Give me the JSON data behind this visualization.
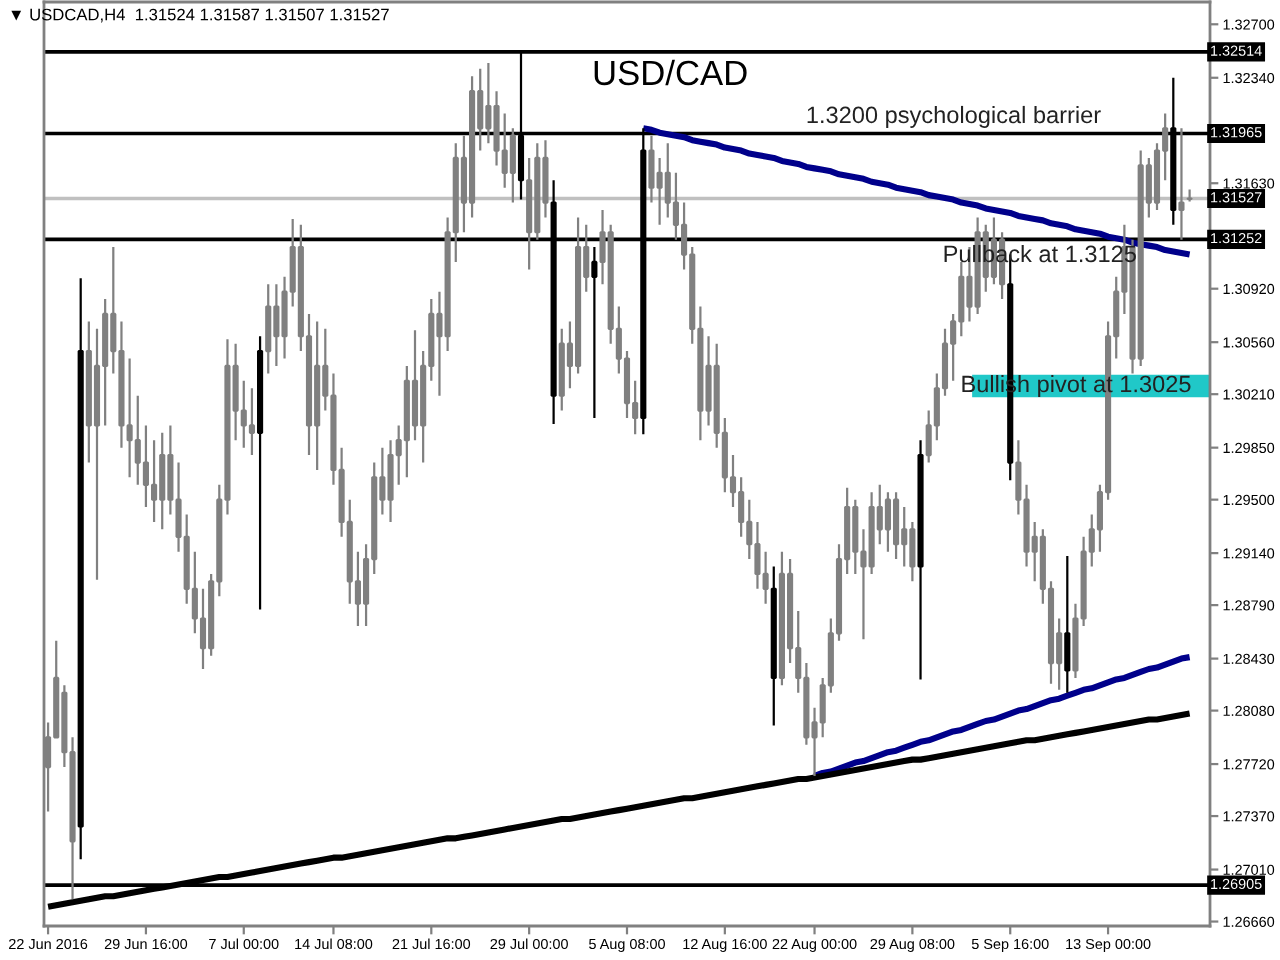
{
  "chart_data": {
    "type": "candlestick",
    "title": "USD/CAD",
    "subtitle": "▼ USDCAD,H4  1.31524 1.31587 1.31507 1.31527",
    "categories": [
      "22 Jun 2016",
      null,
      null,
      null,
      null,
      null,
      null,
      null,
      null,
      null,
      null,
      null,
      "29 Jun 16:00",
      null,
      null,
      null,
      null,
      null,
      null,
      null,
      null,
      null,
      null,
      null,
      "7 Jul 00:00",
      null,
      null,
      null,
      null,
      null,
      null,
      null,
      null,
      null,
      null,
      "14 Jul 08:00",
      null,
      null,
      null,
      null,
      null,
      null,
      null,
      null,
      null,
      null,
      null,
      "21 Jul 16:00",
      null,
      null,
      null,
      null,
      null,
      null,
      null,
      null,
      null,
      null,
      null,
      "29 Jul 00:00",
      null,
      null,
      null,
      null,
      null,
      null,
      null,
      null,
      null,
      null,
      null,
      "5 Aug 08:00",
      null,
      null,
      null,
      null,
      null,
      null,
      null,
      null,
      null,
      null,
      null,
      "12 Aug 16:00",
      null,
      null,
      null,
      null,
      null,
      null,
      null,
      null,
      null,
      null,
      "22 Aug 00:00",
      null,
      null,
      null,
      null,
      null,
      null,
      null,
      null,
      null,
      null,
      null,
      "29 Aug 08:00",
      null,
      null,
      null,
      null,
      null,
      null,
      null,
      null,
      null,
      null,
      null,
      "5 Sep 16:00",
      null,
      null,
      null,
      null,
      null,
      null,
      null,
      null,
      null,
      null,
      null,
      "13 Sep 00:00",
      null,
      null,
      null,
      null,
      null,
      null,
      null,
      null,
      null,
      null
    ],
    "ohlc": [
      [
        1.277,
        1.28,
        1.274,
        1.279
      ],
      [
        1.279,
        1.2855,
        1.279,
        1.283
      ],
      [
        1.282,
        1.2825,
        1.277,
        1.278
      ],
      [
        1.278,
        1.279,
        1.2681,
        1.272
      ],
      [
        1.273,
        1.3099,
        1.2708,
        1.305
      ],
      [
        1.305,
        1.307,
        1.2975,
        1.3
      ],
      [
        1.3,
        1.3065,
        1.2896,
        1.304
      ],
      [
        1.304,
        1.3085,
        1.3,
        1.3075
      ],
      [
        1.3075,
        1.312,
        1.3035,
        1.305
      ],
      [
        1.305,
        1.307,
        1.2985,
        1.3
      ],
      [
        1.3,
        1.3045,
        1.2965,
        1.299
      ],
      [
        1.299,
        1.302,
        1.296,
        1.2975
      ],
      [
        1.2975,
        1.3,
        1.2945,
        1.296
      ],
      [
        1.296,
        1.299,
        1.2935,
        1.295
      ],
      [
        1.295,
        1.2995,
        1.293,
        1.298
      ],
      [
        1.298,
        1.3,
        1.294,
        1.295
      ],
      [
        1.295,
        1.2975,
        1.2915,
        1.2925
      ],
      [
        1.2925,
        1.294,
        1.288,
        1.289
      ],
      [
        1.289,
        1.2915,
        1.286,
        1.287
      ],
      [
        1.287,
        1.289,
        1.2836,
        1.285
      ],
      [
        1.285,
        1.29,
        1.2845,
        1.2895
      ],
      [
        1.2895,
        1.296,
        1.2885,
        1.295
      ],
      [
        1.295,
        1.3058,
        1.294,
        1.304
      ],
      [
        1.304,
        1.3055,
        1.299,
        1.301
      ],
      [
        1.301,
        1.303,
        1.2985,
        1.3
      ],
      [
        1.3,
        1.3025,
        1.298,
        1.2995
      ],
      [
        1.2995,
        1.306,
        1.2876,
        1.305
      ],
      [
        1.305,
        1.3095,
        1.3035,
        1.308
      ],
      [
        1.308,
        1.3095,
        1.304,
        1.306
      ],
      [
        1.306,
        1.31,
        1.3045,
        1.309
      ],
      [
        1.309,
        1.3139,
        1.308,
        1.312
      ],
      [
        1.312,
        1.3135,
        1.305,
        1.306
      ],
      [
        1.306,
        1.3075,
        1.298,
        1.3
      ],
      [
        1.3,
        1.307,
        1.297,
        1.304
      ],
      [
        1.304,
        1.3065,
        1.301,
        1.302
      ],
      [
        1.302,
        1.3035,
        1.296,
        1.297
      ],
      [
        1.297,
        1.2985,
        1.2925,
        1.2935
      ],
      [
        1.2935,
        1.295,
        1.288,
        1.2895
      ],
      [
        1.2895,
        1.2915,
        1.2865,
        1.288
      ],
      [
        1.288,
        1.292,
        1.2865,
        1.291
      ],
      [
        1.291,
        1.2975,
        1.29,
        1.2965
      ],
      [
        1.2965,
        1.2985,
        1.294,
        1.295
      ],
      [
        1.295,
        1.299,
        1.2935,
        1.298
      ],
      [
        1.298,
        1.3,
        1.296,
        1.299
      ],
      [
        1.299,
        1.304,
        1.2965,
        1.303
      ],
      [
        1.303,
        1.3064,
        1.299,
        1.3
      ],
      [
        1.3,
        1.305,
        1.2975,
        1.304
      ],
      [
        1.304,
        1.3085,
        1.303,
        1.3075
      ],
      [
        1.3075,
        1.309,
        1.302,
        1.306
      ],
      [
        1.306,
        1.314,
        1.305,
        1.313
      ],
      [
        1.313,
        1.319,
        1.311,
        1.318
      ],
      [
        1.318,
        1.3195,
        1.313,
        1.315
      ],
      [
        1.315,
        1.3235,
        1.314,
        1.3225
      ],
      [
        1.3225,
        1.324,
        1.3185,
        1.32
      ],
      [
        1.32,
        1.3244,
        1.319,
        1.3215
      ],
      [
        1.3215,
        1.3225,
        1.3175,
        1.3185
      ],
      [
        1.3185,
        1.321,
        1.316,
        1.317
      ],
      [
        1.317,
        1.32,
        1.315,
        1.3195
      ],
      [
        1.3195,
        1.3251,
        1.3152,
        1.3165
      ],
      [
        1.3165,
        1.318,
        1.3105,
        1.313
      ],
      [
        1.313,
        1.319,
        1.3125,
        1.318
      ],
      [
        1.318,
        1.3192,
        1.314,
        1.315
      ],
      [
        1.315,
        1.3165,
        1.3001,
        1.302
      ],
      [
        1.302,
        1.3065,
        1.301,
        1.3055
      ],
      [
        1.3055,
        1.307,
        1.3025,
        1.304
      ],
      [
        1.304,
        1.314,
        1.3035,
        1.312
      ],
      [
        1.312,
        1.3135,
        1.309,
        1.31
      ],
      [
        1.31,
        1.312,
        1.3005,
        1.311
      ],
      [
        1.311,
        1.3145,
        1.3095,
        1.313
      ],
      [
        1.313,
        1.3135,
        1.3055,
        1.3065
      ],
      [
        1.3065,
        1.308,
        1.3035,
        1.3045
      ],
      [
        1.3045,
        1.305,
        1.3005,
        1.3015
      ],
      [
        1.3015,
        1.303,
        1.2994,
        1.3005
      ],
      [
        1.3005,
        1.32,
        1.2994,
        1.3185
      ],
      [
        1.3185,
        1.3195,
        1.315,
        1.316
      ],
      [
        1.316,
        1.318,
        1.3135,
        1.317
      ],
      [
        1.317,
        1.319,
        1.314,
        1.315
      ],
      [
        1.315,
        1.317,
        1.3125,
        1.3135
      ],
      [
        1.3135,
        1.315,
        1.3105,
        1.3115
      ],
      [
        1.3115,
        1.312,
        1.3055,
        1.3065
      ],
      [
        1.3065,
        1.308,
        1.299,
        1.301
      ],
      [
        1.301,
        1.306,
        1.3,
        1.304
      ],
      [
        1.304,
        1.3055,
        1.2985,
        1.2995
      ],
      [
        1.2995,
        1.3005,
        1.2955,
        1.2965
      ],
      [
        1.2965,
        1.298,
        1.2945,
        1.2955
      ],
      [
        1.2955,
        1.2965,
        1.2925,
        1.2935
      ],
      [
        1.2935,
        1.295,
        1.291,
        1.292
      ],
      [
        1.292,
        1.2935,
        1.289,
        1.29
      ],
      [
        1.29,
        1.2915,
        1.288,
        1.289
      ],
      [
        1.289,
        1.2905,
        1.2798,
        1.283
      ],
      [
        1.283,
        1.2915,
        1.2825,
        1.29
      ],
      [
        1.29,
        1.291,
        1.284,
        1.285
      ],
      [
        1.285,
        1.2875,
        1.282,
        1.283
      ],
      [
        1.283,
        1.284,
        1.2785,
        1.279
      ],
      [
        1.279,
        1.281,
        1.2764,
        1.28
      ],
      [
        1.28,
        1.283,
        1.279,
        1.2825
      ],
      [
        1.2825,
        1.287,
        1.282,
        1.286
      ],
      [
        1.286,
        1.292,
        1.2855,
        1.291
      ],
      [
        1.291,
        1.2958,
        1.29,
        1.2945
      ],
      [
        1.2945,
        1.295,
        1.29,
        1.2915
      ],
      [
        1.2915,
        1.293,
        1.2856,
        1.2905
      ],
      [
        1.2905,
        1.2955,
        1.29,
        1.2945
      ],
      [
        1.2945,
        1.296,
        1.292,
        1.293
      ],
      [
        1.293,
        1.2955,
        1.2915,
        1.295
      ],
      [
        1.295,
        1.2955,
        1.291,
        1.292
      ],
      [
        1.292,
        1.2945,
        1.2905,
        1.293
      ],
      [
        1.293,
        1.2935,
        1.2895,
        1.2905
      ],
      [
        1.2905,
        1.299,
        1.2829,
        1.298
      ],
      [
        1.298,
        1.301,
        1.2975,
        1.3
      ],
      [
        1.3,
        1.3035,
        1.299,
        1.3025
      ],
      [
        1.3025,
        1.3065,
        1.302,
        1.3055
      ],
      [
        1.3055,
        1.3075,
        1.303,
        1.307
      ],
      [
        1.307,
        1.311,
        1.306,
        1.31
      ],
      [
        1.31,
        1.312,
        1.307,
        1.308
      ],
      [
        1.308,
        1.314,
        1.3075,
        1.313
      ],
      [
        1.313,
        1.3135,
        1.309,
        1.31
      ],
      [
        1.31,
        1.314,
        1.3095,
        1.3125
      ],
      [
        1.3125,
        1.313,
        1.3085,
        1.3095
      ],
      [
        1.3095,
        1.3115,
        1.2963,
        1.2975
      ],
      [
        1.2975,
        1.299,
        1.294,
        1.295
      ],
      [
        1.295,
        1.296,
        1.2905,
        1.2915
      ],
      [
        1.2915,
        1.2935,
        1.2895,
        1.2925
      ],
      [
        1.2925,
        1.293,
        1.288,
        1.289
      ],
      [
        1.289,
        1.2895,
        1.2826,
        1.284
      ],
      [
        1.284,
        1.287,
        1.2822,
        1.286
      ],
      [
        1.286,
        1.2912,
        1.282,
        1.2835
      ],
      [
        1.2835,
        1.288,
        1.283,
        1.287
      ],
      [
        1.287,
        1.2925,
        1.2865,
        1.2915
      ],
      [
        1.2915,
        1.294,
        1.2905,
        1.293
      ],
      [
        1.293,
        1.296,
        1.2915,
        1.2955
      ],
      [
        1.2955,
        1.307,
        1.295,
        1.306
      ],
      [
        1.306,
        1.31,
        1.3045,
        1.309
      ],
      [
        1.309,
        1.3135,
        1.3075,
        1.312
      ],
      [
        1.312,
        1.3125,
        1.3035,
        1.3045
      ],
      [
        1.3045,
        1.3185,
        1.304,
        1.3175
      ],
      [
        1.3175,
        1.318,
        1.314,
        1.315
      ],
      [
        1.315,
        1.319,
        1.3145,
        1.3185
      ],
      [
        1.3185,
        1.321,
        1.3165,
        1.32
      ],
      [
        1.32,
        1.3234,
        1.3135,
        1.3145
      ],
      [
        1.3145,
        1.32,
        1.3125,
        1.315
      ],
      [
        1.31524,
        1.31587,
        1.31507,
        1.31527
      ]
    ],
    "colors": [
      "#808080",
      "#808080",
      "#808080",
      "#808080",
      "#000000",
      "#808080",
      "#808080",
      "#808080",
      "#808080",
      "#808080",
      "#808080",
      "#808080",
      "#808080",
      "#808080",
      "#808080",
      "#808080",
      "#808080",
      "#808080",
      "#808080",
      "#808080",
      "#808080",
      "#808080",
      "#808080",
      "#808080",
      "#808080",
      "#808080",
      "#000000",
      "#808080",
      "#808080",
      "#808080",
      "#808080",
      "#808080",
      "#808080",
      "#808080",
      "#808080",
      "#808080",
      "#808080",
      "#808080",
      "#808080",
      "#808080",
      "#808080",
      "#808080",
      "#808080",
      "#808080",
      "#808080",
      "#808080",
      "#808080",
      "#808080",
      "#808080",
      "#808080",
      "#808080",
      "#808080",
      "#808080",
      "#808080",
      "#808080",
      "#808080",
      "#808080",
      "#808080",
      "#000000",
      "#808080",
      "#808080",
      "#808080",
      "#000000",
      "#808080",
      "#808080",
      "#808080",
      "#808080",
      "#000000",
      "#808080",
      "#808080",
      "#808080",
      "#808080",
      "#808080",
      "#000000",
      "#808080",
      "#808080",
      "#808080",
      "#808080",
      "#808080",
      "#808080",
      "#808080",
      "#808080",
      "#808080",
      "#808080",
      "#808080",
      "#808080",
      "#808080",
      "#808080",
      "#808080",
      "#000000",
      "#808080",
      "#808080",
      "#808080",
      "#808080",
      "#808080",
      "#808080",
      "#808080",
      "#808080",
      "#808080",
      "#808080",
      "#808080",
      "#808080",
      "#808080",
      "#808080",
      "#808080",
      "#808080",
      "#808080",
      "#000000",
      "#808080",
      "#808080",
      "#808080",
      "#808080",
      "#808080",
      "#808080",
      "#808080",
      "#808080",
      "#808080",
      "#808080",
      "#000000",
      "#808080",
      "#808080",
      "#808080",
      "#808080",
      "#808080",
      "#808080",
      "#000000",
      "#808080",
      "#808080",
      "#808080",
      "#808080",
      "#808080",
      "#808080",
      "#808080",
      "#808080",
      "#808080",
      "#808080",
      "#808080",
      "#808080",
      "#000000",
      "#808080",
      "#808080"
    ],
    "series": [
      {
        "type": "line",
        "color": "#00008b",
        "values": [
          null,
          null,
          null,
          null,
          null,
          null,
          null,
          null,
          null,
          null,
          null,
          null,
          null,
          null,
          null,
          null,
          null,
          null,
          null,
          null,
          null,
          null,
          null,
          null,
          null,
          null,
          null,
          null,
          null,
          null,
          null,
          null,
          null,
          null,
          null,
          null,
          null,
          null,
          null,
          null,
          null,
          null,
          null,
          null,
          null,
          null,
          null,
          null,
          null,
          null,
          null,
          null,
          null,
          null,
          null,
          null,
          null,
          null,
          null,
          null,
          null,
          null,
          null,
          null,
          null,
          null,
          null,
          null,
          null,
          null,
          null,
          null,
          null,
          1.32,
          1.3199,
          1.3197,
          1.3196,
          1.3195,
          1.3194,
          1.3192,
          1.3191,
          1.319,
          1.3189,
          1.3187,
          1.3186,
          1.3185,
          1.3183,
          1.3182,
          1.3181,
          1.318,
          1.3178,
          1.3177,
          1.3176,
          1.3174,
          1.3173,
          1.3172,
          1.3171,
          1.3169,
          1.3168,
          1.3167,
          1.3166,
          1.3164,
          1.3163,
          1.3162,
          1.316,
          1.3159,
          1.3158,
          1.3157,
          1.3155,
          1.3154,
          1.3153,
          1.3152,
          1.315,
          1.3149,
          1.3148,
          1.3146,
          1.3145,
          1.3144,
          1.3143,
          1.3141,
          1.314,
          1.3139,
          1.3138,
          1.3136,
          1.3135,
          1.3134,
          1.3132,
          1.3131,
          1.313,
          1.3129,
          1.3127,
          1.3126,
          1.3125,
          1.3123,
          1.3122,
          1.3121,
          1.312,
          1.3118,
          1.3117,
          1.3116,
          1.3115
        ]
      },
      {
        "type": "line",
        "color": "#00008b",
        "values": [
          null,
          null,
          null,
          null,
          null,
          null,
          null,
          null,
          null,
          null,
          null,
          null,
          null,
          null,
          null,
          null,
          null,
          null,
          null,
          null,
          null,
          null,
          null,
          null,
          null,
          null,
          null,
          null,
          null,
          null,
          null,
          null,
          null,
          null,
          null,
          null,
          null,
          null,
          null,
          null,
          null,
          null,
          null,
          null,
          null,
          null,
          null,
          null,
          null,
          null,
          null,
          null,
          null,
          null,
          null,
          null,
          null,
          null,
          null,
          null,
          null,
          null,
          null,
          null,
          null,
          null,
          null,
          null,
          null,
          null,
          null,
          null,
          null,
          null,
          null,
          null,
          null,
          null,
          null,
          null,
          null,
          null,
          null,
          null,
          null,
          null,
          null,
          null,
          null,
          null,
          null,
          null,
          null,
          null,
          1.2764,
          1.2766,
          1.2767,
          1.2769,
          1.2771,
          1.2773,
          1.2774,
          1.2776,
          1.2778,
          1.278,
          1.2781,
          1.2783,
          1.2785,
          1.2787,
          1.2788,
          1.279,
          1.2792,
          1.2794,
          1.2795,
          1.2797,
          1.2799,
          1.2801,
          1.2802,
          1.2804,
          1.2806,
          1.2808,
          1.2809,
          1.2811,
          1.2813,
          1.2815,
          1.2816,
          1.2818,
          1.282,
          1.2822,
          1.2823,
          1.2825,
          1.2827,
          1.2829,
          1.283,
          1.2832,
          1.2834,
          1.2836,
          1.2837,
          1.2839,
          1.2841,
          1.2843,
          1.2844
        ]
      },
      {
        "type": "line",
        "color": "#000000",
        "values": [
          1.2676,
          1.2677,
          1.2678,
          1.2679,
          1.268,
          1.2681,
          1.2682,
          1.2683,
          1.2683,
          1.2684,
          1.2685,
          1.2686,
          1.2687,
          1.2688,
          1.2689,
          1.269,
          1.2691,
          1.2692,
          1.2693,
          1.2694,
          1.2695,
          1.2696,
          1.2696,
          1.2697,
          1.2698,
          1.2699,
          1.27,
          1.2701,
          1.2702,
          1.2703,
          1.2704,
          1.2705,
          1.2706,
          1.2707,
          1.2708,
          1.2709,
          1.2709,
          1.271,
          1.2711,
          1.2712,
          1.2713,
          1.2714,
          1.2715,
          1.2716,
          1.2717,
          1.2718,
          1.2719,
          1.272,
          1.2721,
          1.2722,
          1.2722,
          1.2723,
          1.2724,
          1.2725,
          1.2726,
          1.2727,
          1.2728,
          1.2729,
          1.273,
          1.2731,
          1.2732,
          1.2733,
          1.2734,
          1.2735,
          1.2735,
          1.2736,
          1.2737,
          1.2738,
          1.2739,
          1.274,
          1.2741,
          1.2742,
          1.2743,
          1.2744,
          1.2745,
          1.2746,
          1.2747,
          1.2748,
          1.2749,
          1.2749,
          1.275,
          1.2751,
          1.2752,
          1.2753,
          1.2754,
          1.2755,
          1.2756,
          1.2757,
          1.2758,
          1.2759,
          1.276,
          1.2761,
          1.2762,
          1.2762,
          1.2763,
          1.2764,
          1.2765,
          1.2766,
          1.2767,
          1.2768,
          1.2769,
          1.277,
          1.2771,
          1.2772,
          1.2773,
          1.2774,
          1.2775,
          1.2775,
          1.2776,
          1.2777,
          1.2778,
          1.2779,
          1.278,
          1.2781,
          1.2782,
          1.2783,
          1.2784,
          1.2785,
          1.2786,
          1.2787,
          1.2788,
          1.2788,
          1.2789,
          1.279,
          1.2791,
          1.2792,
          1.2793,
          1.2794,
          1.2795,
          1.2796,
          1.2797,
          1.2798,
          1.2799,
          1.28,
          1.2801,
          1.2802,
          1.2802,
          1.2803,
          1.2804,
          1.2805,
          1.2806
        ]
      }
    ],
    "ref_lines": [
      {
        "axis": "y",
        "value": 1.32514,
        "label": "1.32514",
        "color": "#000000"
      },
      {
        "axis": "y",
        "value": 1.31965,
        "label": "1.31965",
        "color": "#000000"
      },
      {
        "axis": "y",
        "value": 1.31527,
        "label": "1.31527",
        "color": "#c0c0c0"
      },
      {
        "axis": "y",
        "value": 1.31252,
        "label": "1.31252",
        "color": "#000000"
      },
      {
        "axis": "y",
        "value": 1.26905,
        "label": "1.26905",
        "color": "#000000"
      }
    ],
    "bands": [
      {
        "axis": "y",
        "from": 1.3019,
        "to": 1.3034,
        "label": "Bullish pivot at 1.3025",
        "color": "#20c8c8"
      }
    ],
    "annotations": [
      {
        "text": "1.3200 psychological barrier",
        "y": 1.31965
      },
      {
        "text": "Pullback at 1.3125",
        "y": 1.31252
      }
    ],
    "ylim": [
      1.2663,
      1.3285
    ],
    "yticks": [
      {
        "value": 1.327,
        "label": "1.32700"
      },
      {
        "value": 1.3234,
        "label": "1.32340"
      },
      {
        "value": 1.3163,
        "label": "1.31630"
      },
      {
        "value": 1.3092,
        "label": "1.30920"
      },
      {
        "value": 1.3056,
        "label": "1.30560"
      },
      {
        "value": 1.3021,
        "label": "1.30210"
      },
      {
        "value": 1.2985,
        "label": "1.29850"
      },
      {
        "value": 1.295,
        "label": "1.29500"
      },
      {
        "value": 1.2914,
        "label": "1.29140"
      },
      {
        "value": 1.2879,
        "label": "1.28790"
      },
      {
        "value": 1.2843,
        "label": "1.28430"
      },
      {
        "value": 1.2808,
        "label": "1.28080"
      },
      {
        "value": 1.2772,
        "label": "1.27720"
      },
      {
        "value": 1.2737,
        "label": "1.27370"
      },
      {
        "value": 1.2701,
        "label": "1.27010"
      },
      {
        "value": 1.2666,
        "label": "1.26660"
      }
    ]
  }
}
